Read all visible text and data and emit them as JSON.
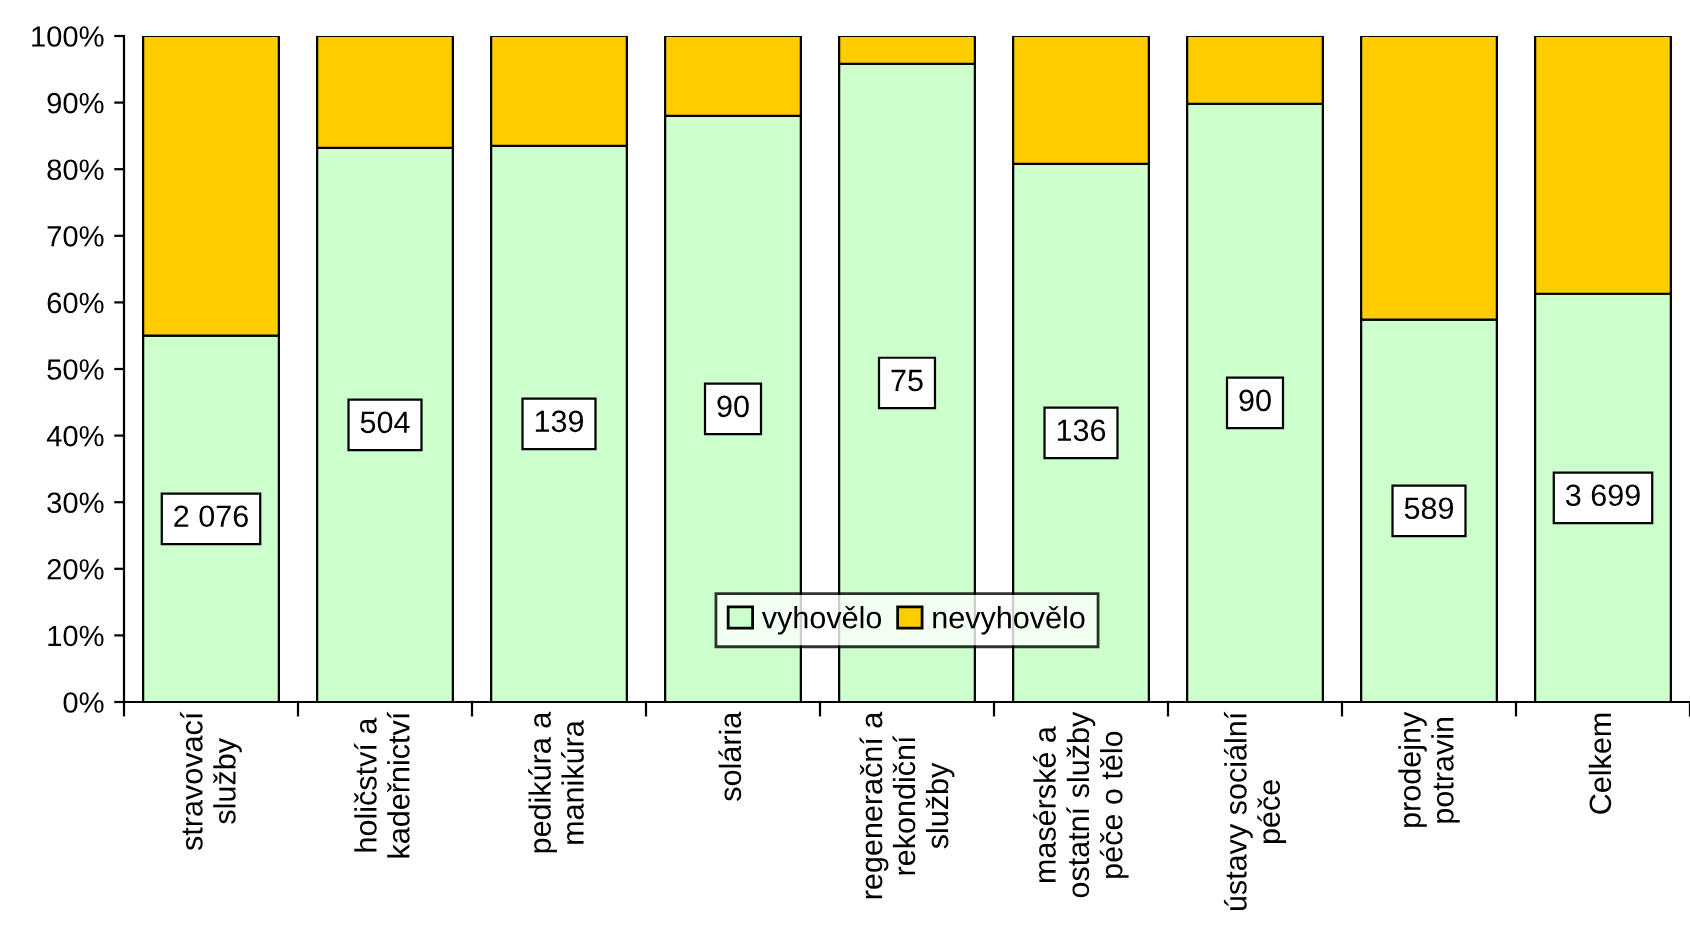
{
  "chart_data": {
    "type": "bar",
    "stacked": true,
    "categories": [
      "stravovací\nslužby",
      "holičství a\nkadeřnictví",
      "pedikúra a\nmanikúra",
      "solária",
      "regenerační a\nrekondiční\nslužby",
      "masérské a\nostatní služby\npéče o tělo",
      "ústavy sociální\npéče",
      "prodejny\npotravin",
      "Celkem"
    ],
    "series": [
      {
        "name": "vyhovělo",
        "color": "#ccffcc",
        "values": [
          55,
          83.2,
          83.5,
          88,
          95.8,
          80.8,
          89.8,
          57.4,
          61.3
        ]
      },
      {
        "name": "nevyhovělo",
        "color": "#ffcc00",
        "values": [
          45,
          16.8,
          16.5,
          12,
          4.2,
          19.2,
          10.2,
          42.6,
          38.7
        ]
      }
    ],
    "annotations": [
      "2 076",
      "504",
      "139",
      "90",
      "75",
      "136",
      "90",
      "589",
      "3 699"
    ],
    "ylim": [
      0,
      100
    ],
    "yticks": [
      {
        "value": 0,
        "label": "0%"
      },
      {
        "value": 10,
        "label": "10%"
      },
      {
        "value": 20,
        "label": "20%"
      },
      {
        "value": 30,
        "label": "30%"
      },
      {
        "value": 40,
        "label": "40%"
      },
      {
        "value": 50,
        "label": "50%"
      },
      {
        "value": 60,
        "label": "60%"
      },
      {
        "value": 70,
        "label": "70%"
      },
      {
        "value": 80,
        "label": "80%"
      },
      {
        "value": 90,
        "label": "90%"
      },
      {
        "value": 100,
        "label": "100%"
      }
    ],
    "grid": false,
    "legend": "bottom"
  }
}
